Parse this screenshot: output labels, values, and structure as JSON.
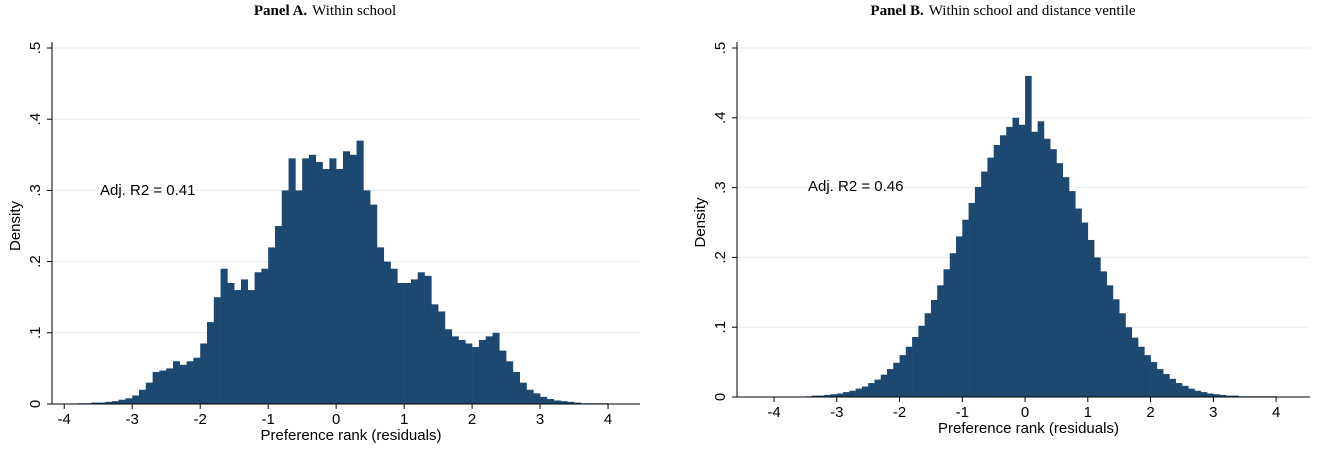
{
  "chart_data": [
    {
      "type": "histogram",
      "title_bold": "Panel A.",
      "title": "Within school",
      "x_label": "Preference rank (residuals)",
      "y_label": "Density",
      "annotation": "Adj. R2 = 0.41",
      "color": "#1d4971",
      "grid": true,
      "bins": [
        -3.8,
        -3.7,
        -3.6,
        -3.5,
        -3.4,
        -3.3,
        -3.2,
        -3.1,
        -3.0,
        -2.9,
        -2.8,
        -2.7,
        -2.6,
        -2.5,
        -2.4,
        -2.3,
        -2.2,
        -2.1,
        -2.0,
        -1.9,
        -1.8,
        -1.7,
        -1.6,
        -1.5,
        -1.4,
        -1.3,
        -1.2,
        -1.1,
        -1.0,
        -0.9,
        -0.8,
        -0.7,
        -0.6,
        -0.5,
        -0.4,
        -0.3,
        -0.2,
        -0.1,
        0.0,
        0.1,
        0.2,
        0.3,
        0.4,
        0.5,
        0.6,
        0.7,
        0.8,
        0.9,
        1.0,
        1.1,
        1.2,
        1.3,
        1.4,
        1.5,
        1.6,
        1.7,
        1.8,
        1.9,
        2.0,
        2.1,
        2.2,
        2.3,
        2.4,
        2.5,
        2.6,
        2.7,
        2.8,
        2.9,
        3.0,
        3.1,
        3.2,
        3.3,
        3.4,
        3.5,
        3.6,
        3.7,
        3.8,
        3.9,
        4.0
      ],
      "values": [
        0.001,
        0.001,
        0.002,
        0.002,
        0.003,
        0.004,
        0.006,
        0.008,
        0.012,
        0.02,
        0.03,
        0.045,
        0.047,
        0.05,
        0.06,
        0.055,
        0.06,
        0.065,
        0.085,
        0.115,
        0.15,
        0.19,
        0.17,
        0.16,
        0.175,
        0.16,
        0.185,
        0.19,
        0.22,
        0.25,
        0.3,
        0.345,
        0.3,
        0.345,
        0.35,
        0.34,
        0.33,
        0.345,
        0.33,
        0.355,
        0.35,
        0.37,
        0.3,
        0.28,
        0.22,
        0.2,
        0.19,
        0.17,
        0.17,
        0.175,
        0.185,
        0.18,
        0.14,
        0.13,
        0.105,
        0.095,
        0.09,
        0.085,
        0.08,
        0.09,
        0.095,
        0.1,
        0.075,
        0.06,
        0.045,
        0.03,
        0.02,
        0.015,
        0.01,
        0.007,
        0.005,
        0.004,
        0.003,
        0.002,
        0.001,
        0.001,
        0.001,
        0.001
      ],
      "xlim": [
        -4.18,
        4.47
      ],
      "xticks": [
        -4,
        -3,
        -2,
        -1,
        0,
        1,
        2,
        3,
        4
      ],
      "ylim": [
        0,
        0.5
      ],
      "yticks": [
        0,
        {
          "value": 0.1,
          "label": ".1"
        },
        {
          "value": 0.2,
          "label": ".2"
        },
        {
          "value": 0.3,
          "label": ".3"
        },
        {
          "value": 0.4,
          "label": ".4"
        },
        {
          "value": 0.5,
          "label": ".5"
        }
      ]
    },
    {
      "type": "histogram",
      "title_bold": "Panel B.",
      "title": "Within school and distance ventile",
      "x_label": "Preference rank (residuals)",
      "y_label": "Density",
      "annotation": "Adj. R2 = 0.46",
      "color": "#1d4971",
      "grid": true,
      "bins": [
        -3.5,
        -3.4,
        -3.3,
        -3.2,
        -3.1,
        -3.0,
        -2.9,
        -2.8,
        -2.7,
        -2.6,
        -2.5,
        -2.4,
        -2.3,
        -2.2,
        -2.1,
        -2.0,
        -1.9,
        -1.8,
        -1.7,
        -1.6,
        -1.5,
        -1.4,
        -1.3,
        -1.2,
        -1.1,
        -1.0,
        -0.9,
        -0.8,
        -0.7,
        -0.6,
        -0.5,
        -0.4,
        -0.3,
        -0.2,
        -0.1,
        0.0,
        0.1,
        0.2,
        0.3,
        0.4,
        0.5,
        0.6,
        0.7,
        0.8,
        0.9,
        1.0,
        1.1,
        1.2,
        1.3,
        1.4,
        1.5,
        1.6,
        1.7,
        1.8,
        1.9,
        2.0,
        2.1,
        2.2,
        2.3,
        2.4,
        2.5,
        2.6,
        2.7,
        2.8,
        2.9,
        3.0,
        3.1,
        3.2,
        3.3,
        3.4,
        3.5,
        3.6,
        3.7,
        3.8,
        3.9,
        4.0
      ],
      "values": [
        0.001,
        0.002,
        0.002,
        0.003,
        0.004,
        0.005,
        0.007,
        0.009,
        0.012,
        0.015,
        0.02,
        0.025,
        0.032,
        0.04,
        0.049,
        0.06,
        0.072,
        0.086,
        0.102,
        0.12,
        0.139,
        0.16,
        0.183,
        0.206,
        0.23,
        0.254,
        0.278,
        0.301,
        0.323,
        0.343,
        0.361,
        0.375,
        0.387,
        0.4,
        0.39,
        0.46,
        0.38,
        0.395,
        0.37,
        0.355,
        0.335,
        0.315,
        0.295,
        0.27,
        0.25,
        0.225,
        0.2,
        0.18,
        0.16,
        0.14,
        0.12,
        0.1,
        0.085,
        0.072,
        0.06,
        0.05,
        0.04,
        0.033,
        0.026,
        0.02,
        0.016,
        0.012,
        0.009,
        0.007,
        0.005,
        0.004,
        0.003,
        0.002,
        0.002,
        0.001,
        0.001,
        0.001,
        0.001,
        0.001,
        0.001
      ],
      "xlim": [
        -4.59,
        4.54
      ],
      "xticks": [
        -4,
        -3,
        -2,
        -1,
        0,
        1,
        2,
        3,
        4
      ],
      "ylim": [
        0,
        0.5
      ],
      "yticks": [
        0,
        {
          "value": 0.1,
          "label": ".1"
        },
        {
          "value": 0.2,
          "label": ".2"
        },
        {
          "value": 0.3,
          "label": ".3"
        },
        {
          "value": 0.4,
          "label": ".4"
        },
        {
          "value": 0.5,
          "label": ".5"
        }
      ]
    }
  ]
}
